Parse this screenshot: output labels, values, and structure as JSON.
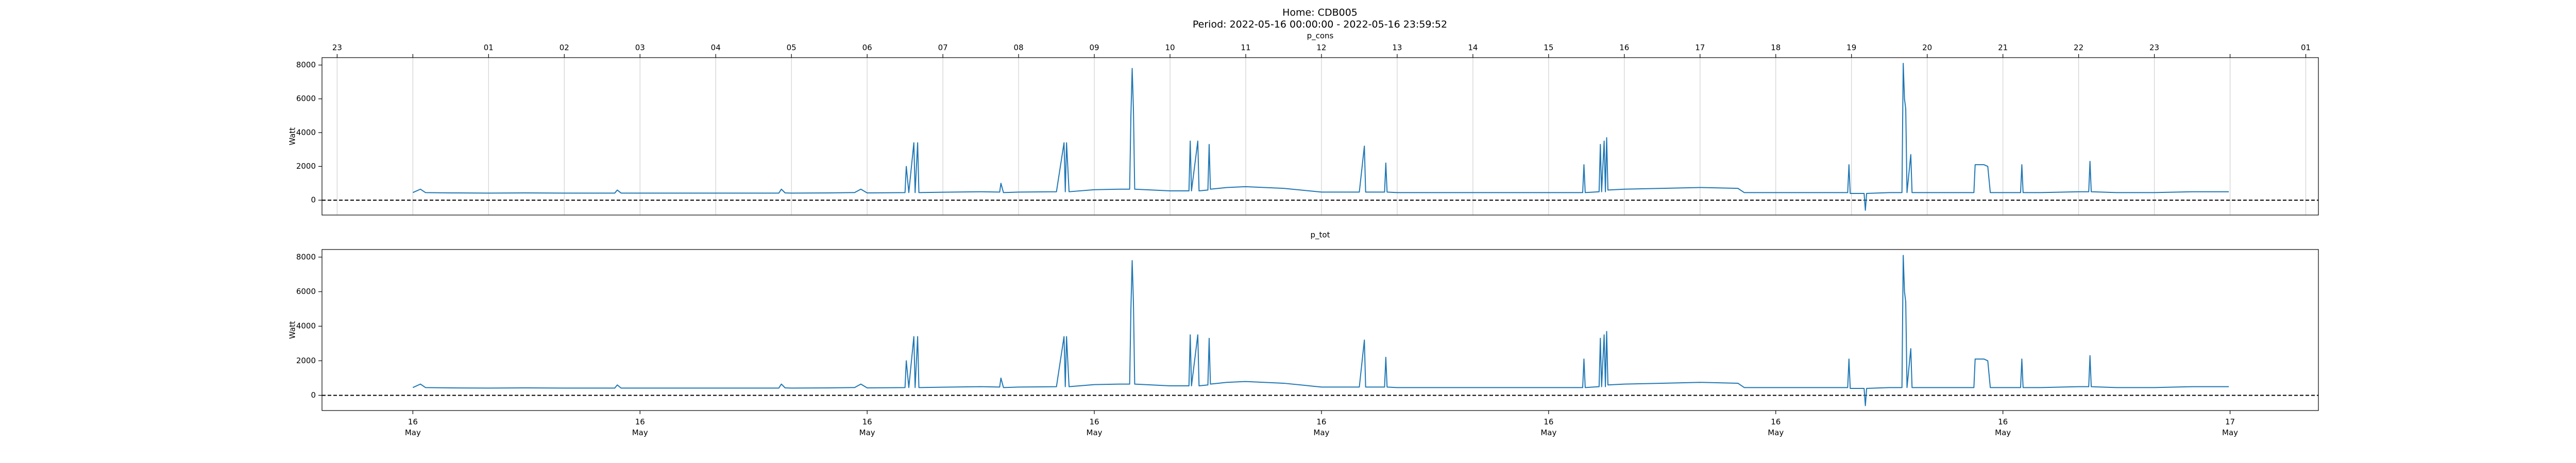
{
  "header": {
    "title": "Home: CDB005",
    "subtitle": "Period: 2022-05-16 00:00:00 - 2022-05-16 23:59:52"
  },
  "chart_data": [
    {
      "type": "line",
      "title": "p_cons",
      "y_label": "Watt",
      "color": "#1f77b4",
      "grid": true,
      "hline": 0,
      "xlim": [
        "2022-05-15 22:48",
        "2022-05-17 01:10"
      ],
      "ylim": [
        -880,
        8440
      ],
      "yticks": [
        0,
        2000,
        4000,
        6000,
        8000
      ],
      "xticks_top": [
        {
          "value": "2022-05-15 23:00",
          "label": "23"
        },
        {
          "value": "2022-05-16 00:00",
          "label": null
        },
        {
          "value": "2022-05-16 01:00",
          "label": "01"
        },
        {
          "value": "2022-05-16 02:00",
          "label": "02"
        },
        {
          "value": "2022-05-16 03:00",
          "label": "03"
        },
        {
          "value": "2022-05-16 04:00",
          "label": "04"
        },
        {
          "value": "2022-05-16 05:00",
          "label": "05"
        },
        {
          "value": "2022-05-16 06:00",
          "label": "06"
        },
        {
          "value": "2022-05-16 07:00",
          "label": "07"
        },
        {
          "value": "2022-05-16 08:00",
          "label": "08"
        },
        {
          "value": "2022-05-16 09:00",
          "label": "09"
        },
        {
          "value": "2022-05-16 10:00",
          "label": "10"
        },
        {
          "value": "2022-05-16 11:00",
          "label": "11"
        },
        {
          "value": "2022-05-16 12:00",
          "label": "12"
        },
        {
          "value": "2022-05-16 13:00",
          "label": "13"
        },
        {
          "value": "2022-05-16 14:00",
          "label": "14"
        },
        {
          "value": "2022-05-16 15:00",
          "label": "15"
        },
        {
          "value": "2022-05-16 16:00",
          "label": "16"
        },
        {
          "value": "2022-05-16 17:00",
          "label": "17"
        },
        {
          "value": "2022-05-16 18:00",
          "label": "18"
        },
        {
          "value": "2022-05-16 19:00",
          "label": "19"
        },
        {
          "value": "2022-05-16 20:00",
          "label": "20"
        },
        {
          "value": "2022-05-16 21:00",
          "label": "21"
        },
        {
          "value": "2022-05-16 22:00",
          "label": "22"
        },
        {
          "value": "2022-05-16 23:00",
          "label": "23"
        },
        {
          "value": "2022-05-17 00:00",
          "label": null
        },
        {
          "value": "2022-05-17 01:00",
          "label": "01"
        }
      ],
      "x": [
        "2022-05-16 00:00",
        "2022-05-16 00:06",
        "2022-05-16 00:10",
        "2022-05-16 00:30",
        "2022-05-16 01:00",
        "2022-05-16 01:30",
        "2022-05-16 02:00",
        "2022-05-16 02:40",
        "2022-05-16 02:42",
        "2022-05-16 02:45",
        "2022-05-16 03:00",
        "2022-05-16 03:30",
        "2022-05-16 04:00",
        "2022-05-16 04:50",
        "2022-05-16 04:52",
        "2022-05-16 04:55",
        "2022-05-16 05:00",
        "2022-05-16 05:30",
        "2022-05-16 05:50",
        "2022-05-16 05:55",
        "2022-05-16 06:00",
        "2022-05-16 06:30",
        "2022-05-16 06:31",
        "2022-05-16 06:33",
        "2022-05-16 06:37",
        "2022-05-16 06:38",
        "2022-05-16 06:40",
        "2022-05-16 06:41",
        "2022-05-16 07:00",
        "2022-05-16 07:30",
        "2022-05-16 07:45",
        "2022-05-16 07:46",
        "2022-05-16 07:48",
        "2022-05-16 08:00",
        "2022-05-16 08:30",
        "2022-05-16 08:36",
        "2022-05-16 08:37",
        "2022-05-16 08:38",
        "2022-05-16 08:40",
        "2022-05-16 09:00",
        "2022-05-16 09:20",
        "2022-05-16 09:28",
        "2022-05-16 09:29",
        "2022-05-16 09:30",
        "2022-05-16 09:31",
        "2022-05-16 09:32",
        "2022-05-16 10:00",
        "2022-05-16 10:15",
        "2022-05-16 10:16",
        "2022-05-16 10:17",
        "2022-05-16 10:22",
        "2022-05-16 10:23",
        "2022-05-16 10:30",
        "2022-05-16 10:31",
        "2022-05-16 10:32",
        "2022-05-16 10:45",
        "2022-05-16 11:00",
        "2022-05-16 11:30",
        "2022-05-16 12:00",
        "2022-05-16 12:30",
        "2022-05-16 12:34",
        "2022-05-16 12:35",
        "2022-05-16 12:50",
        "2022-05-16 12:51",
        "2022-05-16 12:52",
        "2022-05-16 13:00",
        "2022-05-16 13:30",
        "2022-05-16 14:00",
        "2022-05-16 14:30",
        "2022-05-16 15:00",
        "2022-05-16 15:27",
        "2022-05-16 15:28",
        "2022-05-16 15:29",
        "2022-05-16 15:40",
        "2022-05-16 15:41",
        "2022-05-16 15:42",
        "2022-05-16 15:44",
        "2022-05-16 15:45",
        "2022-05-16 15:46",
        "2022-05-16 15:47",
        "2022-05-16 16:00",
        "2022-05-16 16:30",
        "2022-05-16 17:00",
        "2022-05-16 17:30",
        "2022-05-16 17:35",
        "2022-05-16 18:00",
        "2022-05-16 18:30",
        "2022-05-16 18:57",
        "2022-05-16 18:58",
        "2022-05-16 18:59",
        "2022-05-16 19:10",
        "2022-05-16 19:11",
        "2022-05-16 19:12",
        "2022-05-16 19:30",
        "2022-05-16 19:40",
        "2022-05-16 19:41",
        "2022-05-16 19:42",
        "2022-05-16 19:43",
        "2022-05-16 19:44",
        "2022-05-16 19:47",
        "2022-05-16 19:48",
        "2022-05-16 20:00",
        "2022-05-16 20:30",
        "2022-05-16 20:37",
        "2022-05-16 20:38",
        "2022-05-16 20:42",
        "2022-05-16 20:45",
        "2022-05-16 20:48",
        "2022-05-16 20:50",
        "2022-05-16 21:00",
        "2022-05-16 21:14",
        "2022-05-16 21:15",
        "2022-05-16 21:16",
        "2022-05-16 21:30",
        "2022-05-16 22:00",
        "2022-05-16 22:08",
        "2022-05-16 22:09",
        "2022-05-16 22:10",
        "2022-05-16 22:30",
        "2022-05-16 23:00",
        "2022-05-16 23:30",
        "2022-05-16 23:59"
      ],
      "values": [
        450,
        650,
        450,
        430,
        420,
        430,
        420,
        420,
        600,
        420,
        420,
        420,
        420,
        420,
        650,
        430,
        420,
        430,
        450,
        650,
        430,
        450,
        2000,
        450,
        3400,
        450,
        3400,
        450,
        470,
        500,
        480,
        1000,
        450,
        480,
        500,
        3400,
        500,
        3400,
        500,
        620,
        650,
        650,
        5000,
        7800,
        5400,
        650,
        550,
        550,
        3500,
        550,
        3500,
        550,
        600,
        3300,
        650,
        750,
        800,
        700,
        480,
        480,
        3200,
        480,
        480,
        2200,
        480,
        450,
        450,
        450,
        450,
        450,
        450,
        2100,
        450,
        500,
        3300,
        500,
        3500,
        500,
        3700,
        600,
        650,
        700,
        750,
        700,
        450,
        450,
        450,
        450,
        2100,
        400,
        400,
        -600,
        400,
        450,
        450,
        8100,
        6000,
        5400,
        450,
        2700,
        450,
        450,
        450,
        450,
        2100,
        2100,
        2100,
        2000,
        450,
        450,
        450,
        2100,
        450,
        450,
        500,
        500,
        2300,
        500,
        450,
        450,
        500,
        500
      ]
    },
    {
      "type": "line",
      "title": "p_tot",
      "y_label": "Watt",
      "color": "#1f77b4",
      "grid": false,
      "hline": 0,
      "xlim": [
        "2022-05-15 22:48",
        "2022-05-17 01:10"
      ],
      "ylim": [
        -880,
        8440
      ],
      "yticks": [
        0,
        2000,
        4000,
        6000,
        8000
      ],
      "xticks": [
        {
          "value": "2022-05-16 00:00",
          "label": "16\nMay"
        },
        {
          "value": "2022-05-16 03:00",
          "label": "16\nMay"
        },
        {
          "value": "2022-05-16 06:00",
          "label": "16\nMay"
        },
        {
          "value": "2022-05-16 09:00",
          "label": "16\nMay"
        },
        {
          "value": "2022-05-16 12:00",
          "label": "16\nMay"
        },
        {
          "value": "2022-05-16 15:00",
          "label": "16\nMay"
        },
        {
          "value": "2022-05-16 18:00",
          "label": "16\nMay"
        },
        {
          "value": "2022-05-16 21:00",
          "label": "16\nMay"
        },
        {
          "value": "2022-05-17 00:00",
          "label": "17\nMay"
        }
      ],
      "x": [
        "2022-05-16 00:00",
        "2022-05-16 00:06",
        "2022-05-16 00:10",
        "2022-05-16 00:30",
        "2022-05-16 01:00",
        "2022-05-16 01:30",
        "2022-05-16 02:00",
        "2022-05-16 02:40",
        "2022-05-16 02:42",
        "2022-05-16 02:45",
        "2022-05-16 03:00",
        "2022-05-16 03:30",
        "2022-05-16 04:00",
        "2022-05-16 04:50",
        "2022-05-16 04:52",
        "2022-05-16 04:55",
        "2022-05-16 05:00",
        "2022-05-16 05:30",
        "2022-05-16 05:50",
        "2022-05-16 05:55",
        "2022-05-16 06:00",
        "2022-05-16 06:30",
        "2022-05-16 06:31",
        "2022-05-16 06:33",
        "2022-05-16 06:37",
        "2022-05-16 06:38",
        "2022-05-16 06:40",
        "2022-05-16 06:41",
        "2022-05-16 07:00",
        "2022-05-16 07:30",
        "2022-05-16 07:45",
        "2022-05-16 07:46",
        "2022-05-16 07:48",
        "2022-05-16 08:00",
        "2022-05-16 08:30",
        "2022-05-16 08:36",
        "2022-05-16 08:37",
        "2022-05-16 08:38",
        "2022-05-16 08:40",
        "2022-05-16 09:00",
        "2022-05-16 09:20",
        "2022-05-16 09:28",
        "2022-05-16 09:29",
        "2022-05-16 09:30",
        "2022-05-16 09:31",
        "2022-05-16 09:32",
        "2022-05-16 10:00",
        "2022-05-16 10:15",
        "2022-05-16 10:16",
        "2022-05-16 10:17",
        "2022-05-16 10:22",
        "2022-05-16 10:23",
        "2022-05-16 10:30",
        "2022-05-16 10:31",
        "2022-05-16 10:32",
        "2022-05-16 10:45",
        "2022-05-16 11:00",
        "2022-05-16 11:30",
        "2022-05-16 12:00",
        "2022-05-16 12:30",
        "2022-05-16 12:34",
        "2022-05-16 12:35",
        "2022-05-16 12:50",
        "2022-05-16 12:51",
        "2022-05-16 12:52",
        "2022-05-16 13:00",
        "2022-05-16 13:30",
        "2022-05-16 14:00",
        "2022-05-16 14:30",
        "2022-05-16 15:00",
        "2022-05-16 15:27",
        "2022-05-16 15:28",
        "2022-05-16 15:29",
        "2022-05-16 15:40",
        "2022-05-16 15:41",
        "2022-05-16 15:42",
        "2022-05-16 15:44",
        "2022-05-16 15:45",
        "2022-05-16 15:46",
        "2022-05-16 15:47",
        "2022-05-16 16:00",
        "2022-05-16 16:30",
        "2022-05-16 17:00",
        "2022-05-16 17:30",
        "2022-05-16 17:35",
        "2022-05-16 18:00",
        "2022-05-16 18:30",
        "2022-05-16 18:57",
        "2022-05-16 18:58",
        "2022-05-16 18:59",
        "2022-05-16 19:10",
        "2022-05-16 19:11",
        "2022-05-16 19:12",
        "2022-05-16 19:30",
        "2022-05-16 19:40",
        "2022-05-16 19:41",
        "2022-05-16 19:42",
        "2022-05-16 19:43",
        "2022-05-16 19:44",
        "2022-05-16 19:47",
        "2022-05-16 19:48",
        "2022-05-16 20:00",
        "2022-05-16 20:30",
        "2022-05-16 20:37",
        "2022-05-16 20:38",
        "2022-05-16 20:42",
        "2022-05-16 20:45",
        "2022-05-16 20:48",
        "2022-05-16 20:50",
        "2022-05-16 21:00",
        "2022-05-16 21:14",
        "2022-05-16 21:15",
        "2022-05-16 21:16",
        "2022-05-16 21:30",
        "2022-05-16 22:00",
        "2022-05-16 22:08",
        "2022-05-16 22:09",
        "2022-05-16 22:10",
        "2022-05-16 22:30",
        "2022-05-16 23:00",
        "2022-05-16 23:30",
        "2022-05-16 23:59"
      ],
      "values": [
        450,
        650,
        450,
        430,
        420,
        430,
        420,
        420,
        600,
        420,
        420,
        420,
        420,
        420,
        650,
        430,
        420,
        430,
        450,
        650,
        430,
        450,
        2000,
        450,
        3400,
        450,
        3400,
        450,
        470,
        500,
        480,
        1000,
        450,
        480,
        500,
        3400,
        500,
        3400,
        500,
        620,
        650,
        650,
        5000,
        7800,
        5400,
        650,
        550,
        550,
        3500,
        550,
        3500,
        550,
        600,
        3300,
        650,
        750,
        800,
        700,
        480,
        480,
        3200,
        480,
        480,
        2200,
        480,
        450,
        450,
        450,
        450,
        450,
        450,
        2100,
        450,
        500,
        3300,
        500,
        3500,
        500,
        3700,
        600,
        650,
        700,
        750,
        700,
        450,
        450,
        450,
        450,
        2100,
        400,
        400,
        -600,
        400,
        450,
        450,
        8100,
        6000,
        5400,
        450,
        2700,
        450,
        450,
        450,
        450,
        2100,
        2100,
        2100,
        2000,
        450,
        450,
        450,
        2100,
        450,
        450,
        500,
        500,
        2300,
        500,
        450,
        450,
        500,
        500
      ]
    }
  ]
}
